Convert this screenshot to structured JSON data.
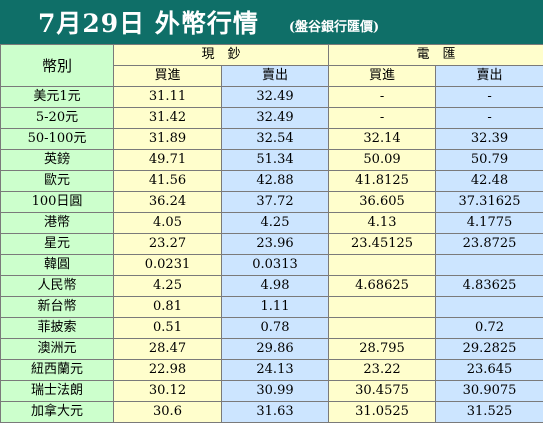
{
  "header": {
    "title": "7月29日 外幣行情",
    "subtitle": "(盤谷銀行匯價)"
  },
  "table": {
    "corner": "幣別",
    "groups": [
      "現　鈔",
      "電　匯"
    ],
    "subheads": [
      "買進",
      "賣出",
      "買進",
      "賣出"
    ],
    "rows": [
      {
        "name": "美元1元",
        "values": [
          "31.11",
          "32.49",
          "-",
          "-"
        ]
      },
      {
        "name": "5-20元",
        "values": [
          "31.42",
          "32.49",
          "-",
          "-"
        ]
      },
      {
        "name": "50-100元",
        "values": [
          "31.89",
          "32.54",
          "32.14",
          "32.39"
        ]
      },
      {
        "name": "英鎊",
        "values": [
          "49.71",
          "51.34",
          "50.09",
          "50.79"
        ]
      },
      {
        "name": "歐元",
        "values": [
          "41.56",
          "42.88",
          "41.8125",
          "42.48"
        ]
      },
      {
        "name": "100日圓",
        "values": [
          "36.24",
          "37.72",
          "36.605",
          "37.31625"
        ]
      },
      {
        "name": "港幣",
        "values": [
          "4.05",
          "4.25",
          "4.13",
          "4.1775"
        ]
      },
      {
        "name": "星元",
        "values": [
          "23.27",
          "23.96",
          "23.45125",
          "23.8725"
        ]
      },
      {
        "name": "韓圓",
        "values": [
          "0.0231",
          "0.0313",
          "",
          ""
        ]
      },
      {
        "name": "人民幣",
        "values": [
          "4.25",
          "4.98",
          "4.68625",
          "4.83625"
        ]
      },
      {
        "name": "新台幣",
        "values": [
          "0.81",
          "1.11",
          "",
          ""
        ]
      },
      {
        "name": "菲披索",
        "values": [
          "0.51",
          "0.78",
          "",
          "0.72"
        ]
      },
      {
        "name": "澳洲元",
        "values": [
          "28.47",
          "29.86",
          "28.795",
          "29.2825"
        ]
      },
      {
        "name": "紐西蘭元",
        "values": [
          "22.98",
          "24.13",
          "23.22",
          "23.645"
        ]
      },
      {
        "name": "瑞士法朗",
        "values": [
          "30.12",
          "30.99",
          "30.4575",
          "30.9075"
        ]
      },
      {
        "name": "加拿大元",
        "values": [
          "30.6",
          "31.63",
          "31.0525",
          "31.525"
        ]
      }
    ]
  },
  "colors": {
    "header_bg": "#0f6f68",
    "name_col": "#ccffcc",
    "buy_col": "#fffecc",
    "sell_col": "#cce5ff"
  }
}
